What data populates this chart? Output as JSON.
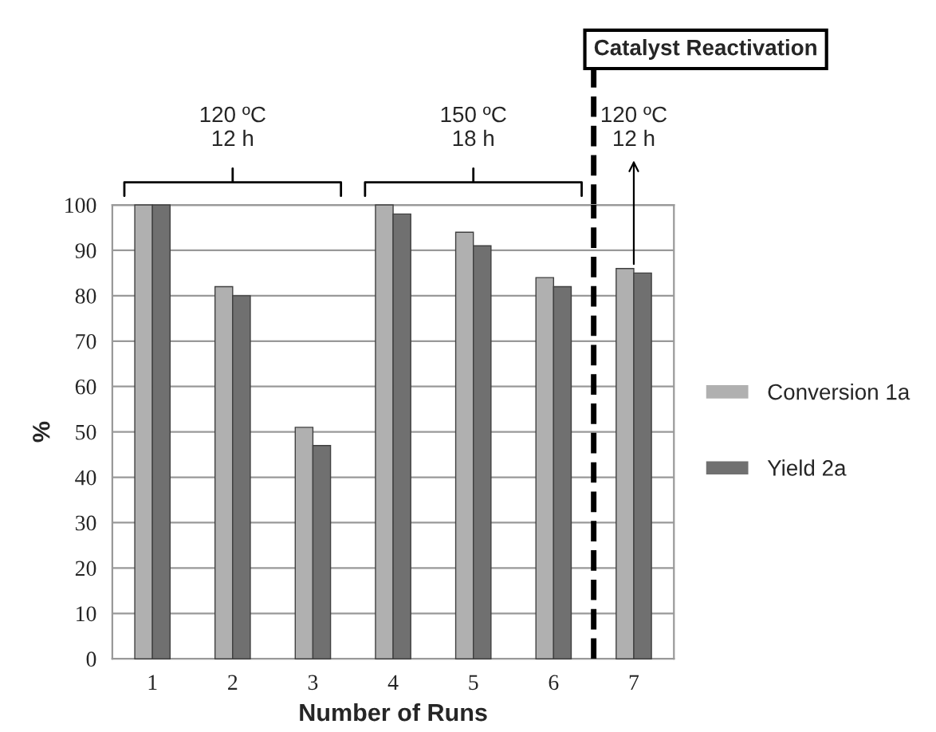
{
  "chart_data": {
    "type": "bar",
    "xlabel": "Number of Runs",
    "ylabel": "%",
    "x": [
      1,
      2,
      3,
      4,
      5,
      6,
      7
    ],
    "series": [
      {
        "name": "Conversion 1a",
        "color": "#b0b0b0",
        "values": [
          100,
          82,
          51,
          100,
          94,
          84,
          86
        ]
      },
      {
        "name": "Yield 2a",
        "color": "#707070",
        "values": [
          100,
          80,
          47,
          98,
          91,
          82,
          85
        ]
      }
    ],
    "xlim": [
      0.5,
      7.5
    ],
    "xticks": [
      1,
      2,
      3,
      4,
      5,
      6,
      7
    ],
    "ylim": [
      0,
      100
    ],
    "yticks": [
      0,
      10,
      20,
      30,
      40,
      50,
      60,
      70,
      80,
      90,
      100
    ],
    "grid": "y",
    "legend": "right",
    "ref_lines": [
      {
        "axis": "x",
        "value": 6.5,
        "label": "Catalyst Reactivation",
        "color": "#000000",
        "line_style": "dashed"
      }
    ],
    "annotations": [
      "120 ºC\n12 h",
      "150 ºC\n18 h",
      {
        "text": "120 ºC\n12 h",
        "x": 7,
        "y": 86
      }
    ]
  }
}
